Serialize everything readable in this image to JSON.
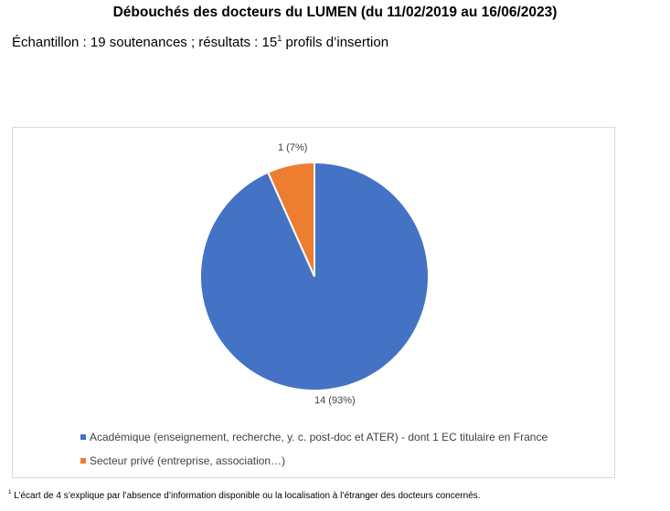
{
  "header": {
    "title": "Débouchés des docteurs du LUMEN (du 11/02/2019 au 16/06/2023)",
    "subtitle_text": "Échantillon : 19 soutenances ; résultats : 15",
    "subtitle_sup": "1",
    "subtitle_end": " profils d’insertion"
  },
  "footnote": {
    "sup": "1",
    "text": " L’écart de 4 s’explique par l’absence d’information disponible ou la localisation à l’étranger des docteurs concernés."
  },
  "chart_data": {
    "type": "pie",
    "title": "",
    "slices": [
      {
        "name": "Académique (enseignement, recherche, y. c. post-doc et ATER) - dont 1 EC titulaire en France",
        "value": 14,
        "percent": 93,
        "label": "14 (93%)",
        "color": "#4472C4"
      },
      {
        "name": "Secteur privé (entreprise, association…)",
        "value": 1,
        "percent": 7,
        "label": "1 (7%)",
        "color": "#ED7D31"
      }
    ],
    "legend_position": "bottom-left"
  }
}
